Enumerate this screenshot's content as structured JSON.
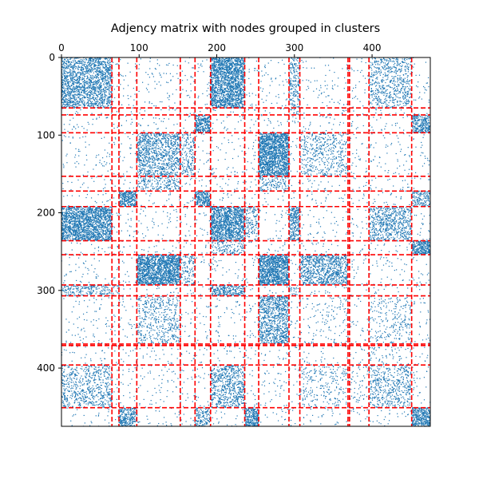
{
  "chart_data": {
    "type": "heatmap",
    "subtype": "spy-plot",
    "title": "Adjency matrix with nodes grouped in clusters",
    "xlabel": "",
    "ylabel": "",
    "n_nodes": 475,
    "x_ticks": [
      0,
      100,
      200,
      300,
      400
    ],
    "y_ticks": [
      0,
      100,
      200,
      300,
      400
    ],
    "x_tick_position": "top",
    "y_inverted": true,
    "marker_color": "#1f77b4",
    "boundary_color": "#ff0000",
    "boundary_style": "dashed",
    "cluster_boundaries": [
      65,
      74,
      97,
      153,
      172,
      192,
      236,
      254,
      293,
      307,
      369,
      371,
      396,
      451
    ],
    "clusters": [
      {
        "id": 0,
        "start": 0,
        "end": 65
      },
      {
        "id": 1,
        "start": 65,
        "end": 74
      },
      {
        "id": 2,
        "start": 74,
        "end": 97
      },
      {
        "id": 3,
        "start": 97,
        "end": 153
      },
      {
        "id": 4,
        "start": 153,
        "end": 172
      },
      {
        "id": 5,
        "start": 172,
        "end": 192
      },
      {
        "id": 6,
        "start": 192,
        "end": 236
      },
      {
        "id": 7,
        "start": 236,
        "end": 254
      },
      {
        "id": 8,
        "start": 254,
        "end": 293
      },
      {
        "id": 9,
        "start": 293,
        "end": 307
      },
      {
        "id": 10,
        "start": 307,
        "end": 369
      },
      {
        "id": 11,
        "start": 369,
        "end": 371
      },
      {
        "id": 12,
        "start": 371,
        "end": 396
      },
      {
        "id": 13,
        "start": 396,
        "end": 451
      },
      {
        "id": 14,
        "start": 451,
        "end": 475
      }
    ],
    "block_density": [
      {
        "rows": 0,
        "cols": 0,
        "density": 0.45
      },
      {
        "rows": 0,
        "cols": 6,
        "density": 0.7
      },
      {
        "rows": 0,
        "cols": 13,
        "density": 0.2
      },
      {
        "rows": 0,
        "cols": 9,
        "density": 0.25
      },
      {
        "rows": 2,
        "cols": 5,
        "density": 0.7
      },
      {
        "rows": 2,
        "cols": 14,
        "density": 0.55
      },
      {
        "rows": 3,
        "cols": 3,
        "density": 0.35
      },
      {
        "rows": 3,
        "cols": 8,
        "density": 0.8
      },
      {
        "rows": 3,
        "cols": 10,
        "density": 0.15
      },
      {
        "rows": 3,
        "cols": 4,
        "density": 0.2
      },
      {
        "rows": 4,
        "cols": 8,
        "density": 0.3
      },
      {
        "rows": 5,
        "cols": 5,
        "density": 0.7
      },
      {
        "rows": 5,
        "cols": 14,
        "density": 0.35
      },
      {
        "rows": 6,
        "cols": 6,
        "density": 0.7
      },
      {
        "rows": 6,
        "cols": 9,
        "density": 0.5
      },
      {
        "rows": 6,
        "cols": 13,
        "density": 0.3
      },
      {
        "rows": 6,
        "cols": 7,
        "density": 0.2
      },
      {
        "rows": 7,
        "cols": 14,
        "density": 0.75
      },
      {
        "rows": 8,
        "cols": 8,
        "density": 0.8
      },
      {
        "rows": 8,
        "cols": 10,
        "density": 0.4
      },
      {
        "rows": 8,
        "cols": 4,
        "density": 0.2
      },
      {
        "rows": 9,
        "cols": 9,
        "density": 0.15
      },
      {
        "rows": 9,
        "cols": 1,
        "density": 0.15
      },
      {
        "rows": 10,
        "cols": 10,
        "density": 0.04
      },
      {
        "rows": 10,
        "cols": 13,
        "density": 0.08
      },
      {
        "rows": 12,
        "cols": 13,
        "density": 0.05
      },
      {
        "rows": 13,
        "cols": 13,
        "density": 0.18
      },
      {
        "rows": 14,
        "cols": 14,
        "density": 0.7
      },
      {
        "rows": 14,
        "cols": 7,
        "density": 0.75
      }
    ],
    "background_density": 0.02
  }
}
